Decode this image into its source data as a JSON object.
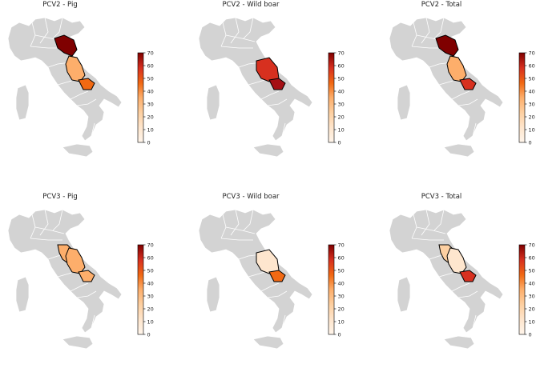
{
  "figure": {
    "colorbar": {
      "ticks": [
        "0",
        "10",
        "20",
        "30",
        "40",
        "50",
        "60",
        "70"
      ],
      "min": 0,
      "max": 70
    },
    "colors": {
      "land": "#d3d3d3",
      "border": "#ffffff",
      "region_outline": "#000000",
      "cmap": [
        "#fff5eb",
        "#fdd49e",
        "#fdae6b",
        "#f16913",
        "#d94801",
        "#a50f15",
        "#7f0000"
      ]
    },
    "panels": [
      {
        "title": "PCV2 - Pig",
        "regions": {
          "emilia-romagna": 65,
          "marche": 0,
          "umbria": 0,
          "abruzzo": 0,
          "lazio": 0,
          "molise": 0,
          "campania": 0,
          "toscana": 0,
          "marche_abruzzo_band": 28,
          "south_band": 35
        }
      },
      {
        "title": "PCV2 - Wild boar",
        "regions": {
          "abruzzo": 48,
          "south_band": 60
        }
      },
      {
        "title": "PCV2 - Total",
        "regions": {
          "emilia-romagna": 65,
          "marche_abruzzo_band": 32,
          "south_band": 45
        }
      },
      {
        "title": "PCV3 - Pig",
        "regions": {
          "marche": 25,
          "marche_abruzzo_band": 27,
          "south_band": 32
        }
      },
      {
        "title": "PCV3 - Wild boar",
        "regions": {
          "abruzzo": 12,
          "south_band": 42
        }
      },
      {
        "title": "PCV3 - Total",
        "regions": {
          "marche": 20,
          "marche_abruzzo_band": 10,
          "south_band": 45
        }
      }
    ]
  }
}
